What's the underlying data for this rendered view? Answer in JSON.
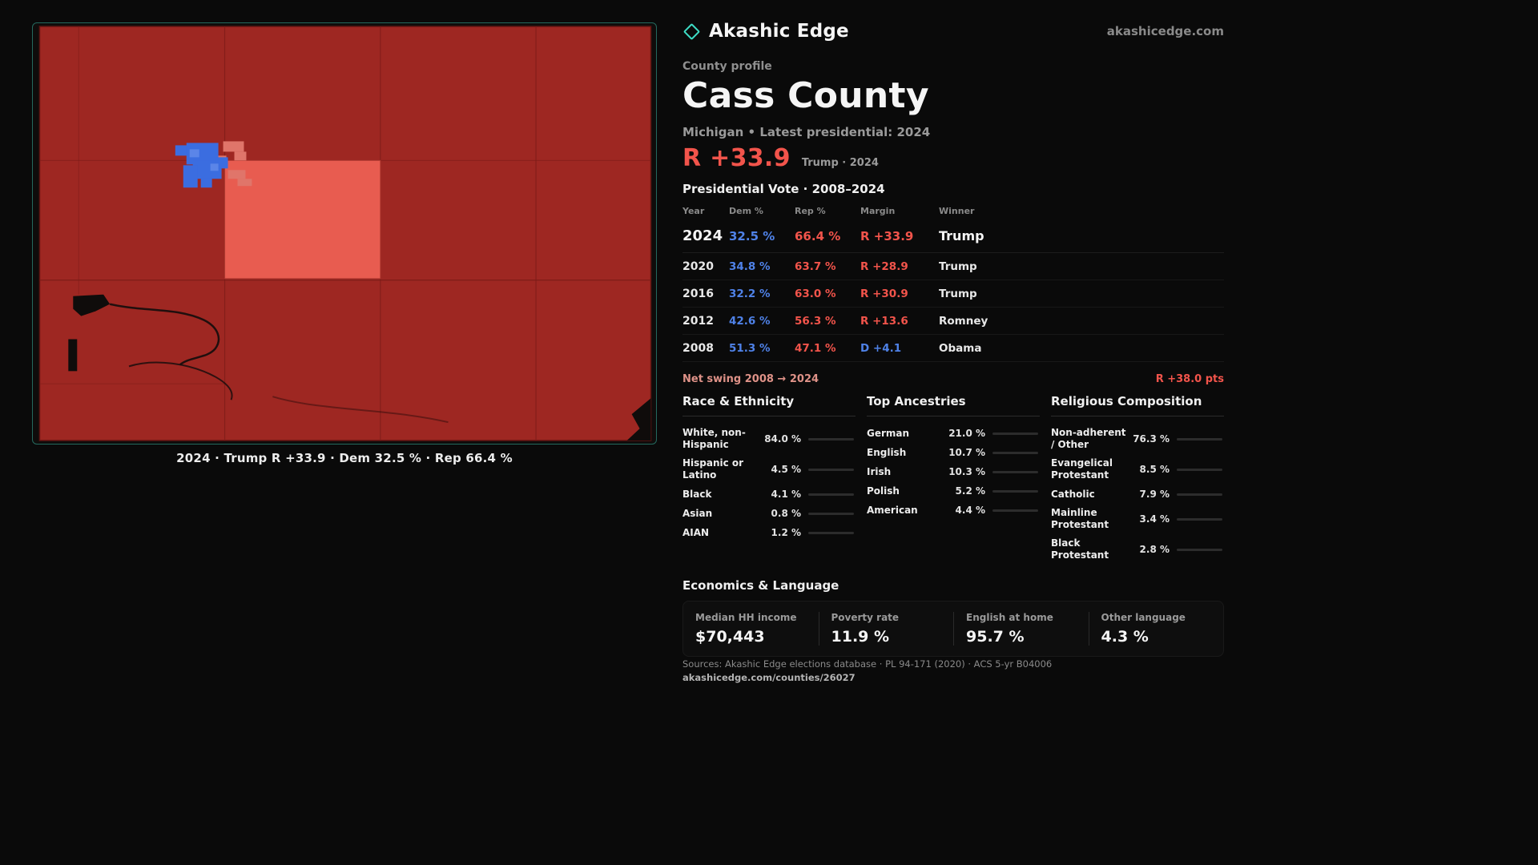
{
  "brand": {
    "name": "Akashic Edge",
    "domain": "akashicedge.com"
  },
  "colors": {
    "rep_red": "#f2544b",
    "dem_blue": "#4f82e8",
    "accent_teal": "#3ddbc4"
  },
  "header": {
    "eyebrow": "County profile",
    "title": "Cass County",
    "subtitle": "Michigan • Latest presidential: 2024"
  },
  "headline": {
    "margin": "R +33.9",
    "margin_color": "#f2544b",
    "context": "Trump · 2024"
  },
  "map": {
    "caption": "2024 · Trump R +33.9 · Dem 32.5 % · Rep 66.4 %"
  },
  "vote_table": {
    "title": "Presidential Vote · 2008–2024",
    "columns": [
      "Year",
      "Dem %",
      "Rep %",
      "Margin",
      "Winner"
    ],
    "rows": [
      {
        "year": "2024",
        "dem": "32.5 %",
        "rep": "66.4 %",
        "margin": "R +33.9",
        "margin_color": "#f2544b",
        "winner": "Trump"
      },
      {
        "year": "2020",
        "dem": "34.8 %",
        "rep": "63.7 %",
        "margin": "R +28.9",
        "margin_color": "#f2544b",
        "winner": "Trump"
      },
      {
        "year": "2016",
        "dem": "32.2 %",
        "rep": "63.0 %",
        "margin": "R +30.9",
        "margin_color": "#f2544b",
        "winner": "Trump"
      },
      {
        "year": "2012",
        "dem": "42.6 %",
        "rep": "56.3 %",
        "margin": "R +13.6",
        "margin_color": "#f2544b",
        "winner": "Romney"
      },
      {
        "year": "2008",
        "dem": "51.3 %",
        "rep": "47.1 %",
        "margin": "D +4.1",
        "margin_color": "#4f82e8",
        "winner": "Obama"
      }
    ]
  },
  "net_swing": {
    "label": "Net swing 2008 → 2024",
    "value": "R +38.0 pts",
    "value_color": "#f2544b"
  },
  "race": {
    "title": "Race & Ethnicity",
    "items": [
      {
        "label": "White, non-Hispanic",
        "value": "84.0 %",
        "pct": 84.0,
        "color": "#c6c6cf"
      },
      {
        "label": "Hispanic or Latino",
        "value": "4.5 %",
        "pct": 4.5,
        "color": "#e8a33d"
      },
      {
        "label": "Black",
        "value": "4.1 %",
        "pct": 4.1,
        "color": "#6f6fe0"
      },
      {
        "label": "Asian",
        "value": "0.8 %",
        "pct": 0.8,
        "color": "#5fb3a1"
      },
      {
        "label": "AIAN",
        "value": "1.2 %",
        "pct": 1.2,
        "color": "#e8a33d"
      }
    ]
  },
  "ancestries": {
    "title": "Top Ancestries",
    "items": [
      {
        "label": "German",
        "value": "21.0 %",
        "pct": 21.0,
        "color": "#9aa0a8"
      },
      {
        "label": "English",
        "value": "10.7 %",
        "pct": 10.7,
        "color": "#9aa0a8"
      },
      {
        "label": "Irish",
        "value": "10.3 %",
        "pct": 10.3,
        "color": "#9aa0a8"
      },
      {
        "label": "Polish",
        "value": "5.2 %",
        "pct": 5.2,
        "color": "#9aa0a8"
      },
      {
        "label": "American",
        "value": "4.4 %",
        "pct": 4.4,
        "color": "#9aa0a8"
      }
    ]
  },
  "religion": {
    "title": "Religious Composition",
    "items": [
      {
        "label": "Non-adherent / Other",
        "value": "76.3 %",
        "pct": 76.3,
        "color": "#b9bec6"
      },
      {
        "label": "Evangelical Protestant",
        "value": "8.5 %",
        "pct": 8.5,
        "color": "#ef6e85"
      },
      {
        "label": "Catholic",
        "value": "7.9 %",
        "pct": 7.9,
        "color": "#e8c33d"
      },
      {
        "label": "Mainline Protestant",
        "value": "3.4 %",
        "pct": 3.4,
        "color": "#5b8def"
      },
      {
        "label": "Black Protestant",
        "value": "2.8 %",
        "pct": 2.8,
        "color": "#7b6fe0"
      }
    ]
  },
  "economics": {
    "title": "Economics & Language",
    "stats": [
      {
        "label": "Median HH income",
        "value": "$70,443"
      },
      {
        "label": "Poverty rate",
        "value": "11.9 %"
      },
      {
        "label": "English at home",
        "value": "95.7 %"
      },
      {
        "label": "Other language",
        "value": "4.3 %"
      }
    ]
  },
  "footer": {
    "sources": "Sources: Akashic Edge elections database · PL 94-171 (2020) · ACS 5-yr B04006",
    "permalink": "akashicedge.com/counties/26027"
  }
}
